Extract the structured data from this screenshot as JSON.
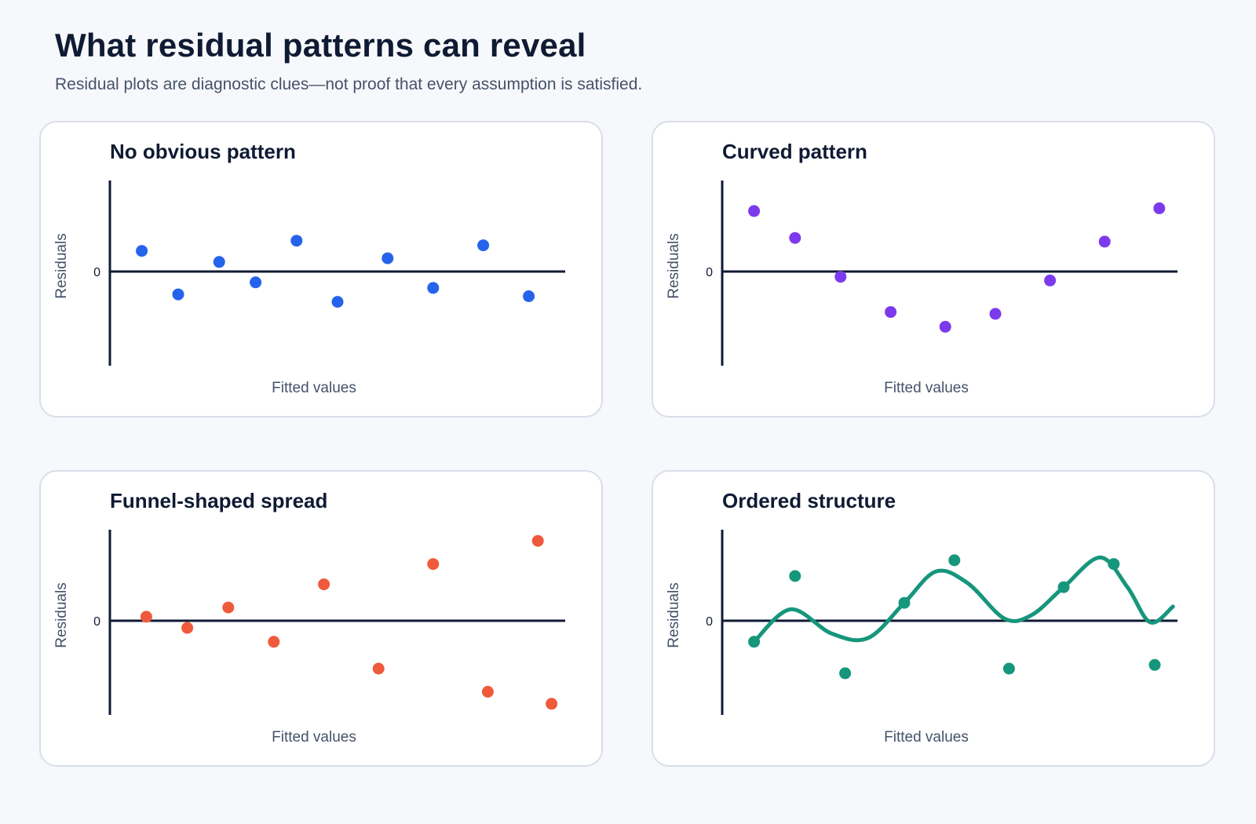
{
  "title": "What residual patterns can reveal",
  "subtitle": "Residual plots are diagnostic clues—not proof that every assumption is satisfied.",
  "chart_data": [
    {
      "type": "scatter",
      "title": "No obvious pattern",
      "xlabel": "Fitted values",
      "ylabel": "Residuals",
      "yticks": [
        "0"
      ],
      "color": "#2563eb",
      "xlim": [
        0,
        100
      ],
      "ylim": [
        -10,
        10
      ],
      "points": [
        {
          "x": 7,
          "y": 2.4
        },
        {
          "x": 15,
          "y": -2.3
        },
        {
          "x": 24,
          "y": 1.2
        },
        {
          "x": 32,
          "y": -1.0
        },
        {
          "x": 41,
          "y": 3.5
        },
        {
          "x": 50,
          "y": -3.1
        },
        {
          "x": 61,
          "y": 1.6
        },
        {
          "x": 71,
          "y": -1.6
        },
        {
          "x": 82,
          "y": 3.0
        },
        {
          "x": 92,
          "y": -2.5
        }
      ]
    },
    {
      "type": "scatter",
      "title": "Curved pattern",
      "xlabel": "Fitted values",
      "ylabel": "Residuals",
      "yticks": [
        "0"
      ],
      "color": "#7c3aed",
      "xlim": [
        0,
        100
      ],
      "ylim": [
        -10,
        10
      ],
      "points": [
        {
          "x": 7,
          "y": 6.7
        },
        {
          "x": 16,
          "y": 3.8
        },
        {
          "x": 26,
          "y": -0.4
        },
        {
          "x": 37,
          "y": -4.2
        },
        {
          "x": 49,
          "y": -5.8
        },
        {
          "x": 60,
          "y": -4.4
        },
        {
          "x": 72,
          "y": -0.8
        },
        {
          "x": 84,
          "y": 3.4
        },
        {
          "x": 96,
          "y": 7.0
        }
      ]
    },
    {
      "type": "scatter",
      "title": "Funnel-shaped spread",
      "xlabel": "Fitted values",
      "ylabel": "Residuals",
      "yticks": [
        "0"
      ],
      "color": "#ef5a3c",
      "xlim": [
        0,
        100
      ],
      "ylim": [
        -10,
        10
      ],
      "points": [
        {
          "x": 8,
          "y": 0.6
        },
        {
          "x": 17,
          "y": -0.6
        },
        {
          "x": 26,
          "y": 1.6
        },
        {
          "x": 36,
          "y": -2.1
        },
        {
          "x": 47,
          "y": 4.1
        },
        {
          "x": 59,
          "y": -5.0
        },
        {
          "x": 71,
          "y": 6.3
        },
        {
          "x": 83,
          "y": -7.5
        },
        {
          "x": 94,
          "y": 8.8
        },
        {
          "x": 97,
          "y": -8.8
        }
      ]
    },
    {
      "type": "scatter",
      "title": "Ordered structure",
      "xlabel": "Fitted values",
      "ylabel": "Residuals",
      "yticks": [
        "0"
      ],
      "color": "#16967c",
      "xlim": [
        0,
        100
      ],
      "ylim": [
        -10,
        10
      ],
      "trend": "smooth wave through points",
      "points": [
        {
          "x": 7,
          "y": -2.1
        },
        {
          "x": 16,
          "y": 5.0
        },
        {
          "x": 27,
          "y": -5.5
        },
        {
          "x": 40,
          "y": 2.1
        },
        {
          "x": 51,
          "y": 6.7
        },
        {
          "x": 63,
          "y": -5.0
        },
        {
          "x": 75,
          "y": 3.8
        },
        {
          "x": 86,
          "y": 6.3
        },
        {
          "x": 95,
          "y": -4.6
        }
      ],
      "curve": [
        {
          "x": 7,
          "y": -2.1
        },
        {
          "x": 15,
          "y": 1.4
        },
        {
          "x": 24,
          "y": -1.2
        },
        {
          "x": 32,
          "y": -1.7
        },
        {
          "x": 40,
          "y": 2.1
        },
        {
          "x": 47,
          "y": 5.5
        },
        {
          "x": 54,
          "y": 4.2
        },
        {
          "x": 62,
          "y": 0.4
        },
        {
          "x": 68,
          "y": 0.8
        },
        {
          "x": 75,
          "y": 3.8
        },
        {
          "x": 83,
          "y": 7.0
        },
        {
          "x": 89,
          "y": 3.8
        },
        {
          "x": 94,
          "y": 0.0
        },
        {
          "x": 99,
          "y": 1.7
        }
      ]
    }
  ]
}
